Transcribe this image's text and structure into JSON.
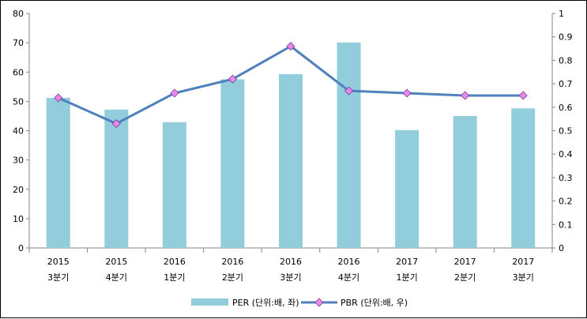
{
  "chart_data": {
    "type": "bar",
    "categories": [
      [
        "2015",
        "3분기"
      ],
      [
        "2015",
        "4분기"
      ],
      [
        "2016",
        "1분기"
      ],
      [
        "2016",
        "2분기"
      ],
      [
        "2016",
        "3분기"
      ],
      [
        "2016",
        "4분기"
      ],
      [
        "2017",
        "1분기"
      ],
      [
        "2017",
        "2분기"
      ],
      [
        "2017",
        "3분기"
      ]
    ],
    "series": [
      {
        "name": "PER (단위:배, 좌)",
        "type": "bar",
        "axis": "left",
        "color": "#92CDDC",
        "values": [
          51.2,
          47.2,
          42.9,
          57.5,
          59.3,
          70.1,
          40.2,
          45.0,
          47.6
        ]
      },
      {
        "name": "PBR (단위:배, 우)",
        "type": "line",
        "axis": "right",
        "color": "#4F81BD",
        "marker_color": "#E889E8",
        "values": [
          0.64,
          0.53,
          0.66,
          0.72,
          0.86,
          0.67,
          0.66,
          0.65,
          0.65
        ]
      }
    ],
    "y_left": {
      "min": 0,
      "max": 80,
      "step": 10
    },
    "y_right": {
      "min": 0,
      "max": 1,
      "step": 0.1
    },
    "grid": false,
    "legend": "bottom"
  }
}
